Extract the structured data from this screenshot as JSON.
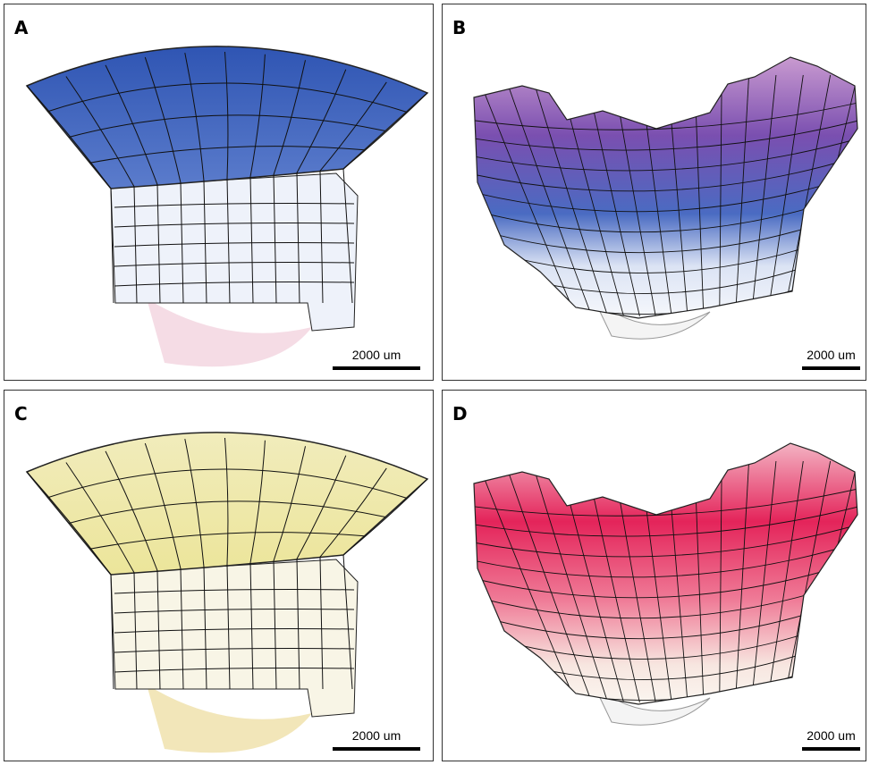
{
  "panels": [
    {
      "label": "A",
      "scale_bar": "2000 um"
    },
    {
      "label": "B",
      "scale_bar": "2000 um"
    },
    {
      "label": "C",
      "scale_bar": "2000 um"
    },
    {
      "label": "D",
      "scale_bar": "2000 um"
    }
  ]
}
